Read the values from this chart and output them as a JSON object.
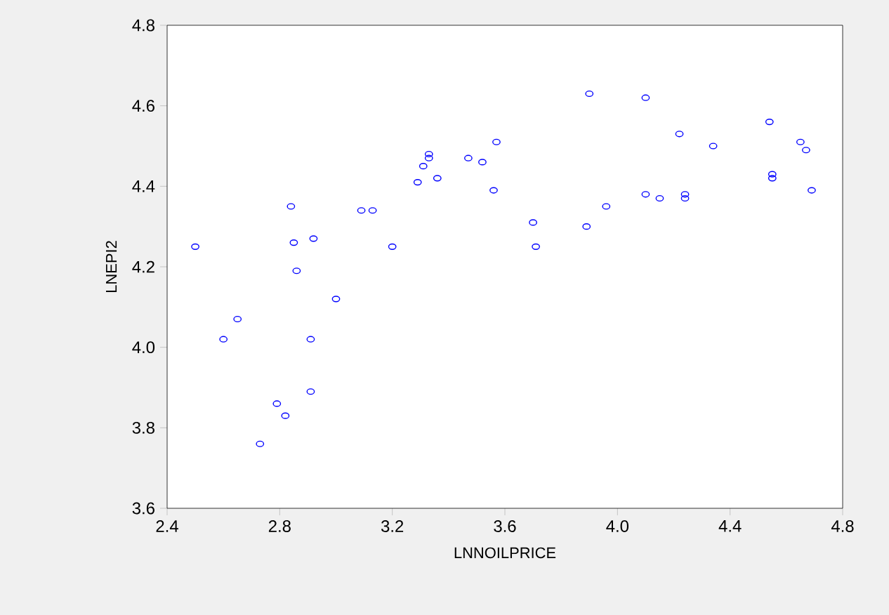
{
  "chart_data": {
    "type": "scatter",
    "xlabel": "LNNOILPRICE",
    "ylabel": "LNEPI2",
    "x": [
      2.5,
      2.6,
      2.65,
      2.73,
      2.79,
      2.82,
      2.84,
      2.85,
      2.86,
      2.91,
      2.91,
      2.92,
      3.0,
      3.09,
      3.13,
      3.2,
      3.29,
      3.31,
      3.33,
      3.33,
      3.36,
      3.47,
      3.52,
      3.56,
      3.57,
      3.7,
      3.71,
      3.89,
      3.9,
      3.96,
      4.1,
      4.1,
      4.15,
      4.22,
      4.24,
      4.24,
      4.34,
      4.54,
      4.55,
      4.55,
      4.65,
      4.67,
      4.69
    ],
    "values": [
      4.25,
      4.02,
      4.07,
      3.76,
      3.86,
      3.83,
      4.35,
      4.26,
      4.19,
      3.89,
      4.02,
      4.27,
      4.12,
      4.34,
      4.34,
      4.25,
      4.41,
      4.45,
      4.48,
      4.47,
      4.42,
      4.47,
      4.46,
      4.39,
      4.51,
      4.31,
      4.25,
      4.3,
      4.63,
      4.35,
      4.62,
      4.38,
      4.37,
      4.53,
      4.38,
      4.37,
      4.5,
      4.56,
      4.42,
      4.43,
      4.51,
      4.49,
      4.39
    ],
    "color": "#0000ff",
    "marker": "circle",
    "grid": false,
    "xlim": [
      2.4,
      4.8
    ],
    "xticks": [
      2.4,
      2.8,
      3.2,
      3.6,
      {
        "value": 4.0,
        "label": "4.0"
      },
      4.4,
      4.8
    ],
    "ylim": [
      3.6,
      4.8
    ],
    "yticks": [
      3.6,
      3.8,
      {
        "value": 4.0,
        "label": "4.0"
      },
      4.2,
      4.4,
      4.6,
      4.8
    ]
  }
}
